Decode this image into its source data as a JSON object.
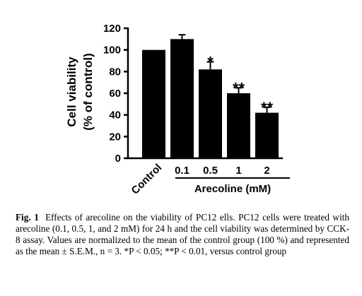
{
  "chart_data": {
    "type": "bar",
    "categories": [
      "Control",
      "0.1",
      "0.5",
      "1",
      "2"
    ],
    "values": [
      100,
      110,
      82,
      60,
      42
    ],
    "errors": [
      0,
      4,
      7,
      5,
      5
    ],
    "significance": [
      "",
      "",
      "*",
      "**",
      "**"
    ],
    "ylabel_line1": "Cell viability",
    "ylabel_line2": "(% of control)",
    "ylim": [
      0,
      120
    ],
    "yticks": [
      "0",
      "20",
      "40",
      "60",
      "80",
      "100",
      "120"
    ],
    "group_label": "Arecoline (mM)",
    "bar_color": "#000000"
  },
  "caption": {
    "fig_label": "Fig. 1",
    "text": "Effects of arecoline on the viability of PC12 ells. PC12 cells were treated with arecoline (0.1, 0.5, 1, and 2 mM) for 24 h and the cell viability was determined by CCK-8 assay. Values are normalized to the mean of the control group (100 %) and represented as the mean ± S.E.M., n = 3. *P < 0.05; **P < 0.01, versus control group"
  }
}
